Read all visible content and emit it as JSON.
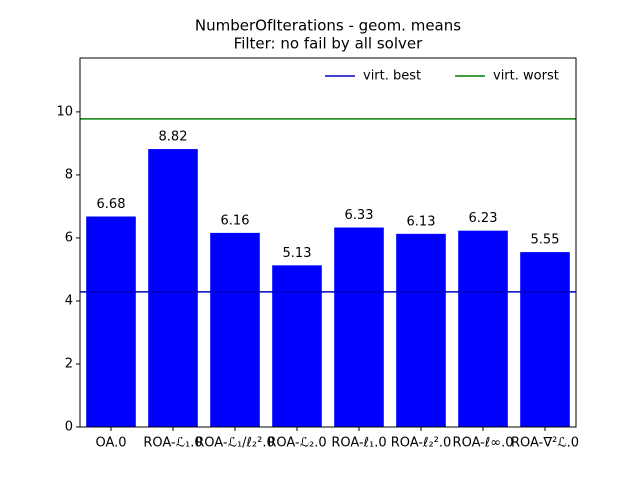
{
  "chart_data": {
    "type": "bar",
    "title": "NumberOfIterations - geom. means",
    "subtitle": "Filter: no fail by all solver",
    "categories": [
      "OA.0",
      "ROA-ℒ₁.0",
      "ROA-ℒ₁/ℓ₂².0",
      "ROA-ℒ₂.0",
      "ROA-ℓ₁.0",
      "ROA-ℓ₂².0",
      "ROA-ℓ∞.0",
      "ROA-∇²ℒ.0"
    ],
    "values": [
      6.68,
      8.82,
      6.16,
      5.13,
      6.33,
      6.13,
      6.23,
      5.55
    ],
    "color": "#0000ff",
    "reference_lines": [
      {
        "name": "virt. best",
        "color": "#0000bf",
        "value": 4.29
      },
      {
        "name": "virt. worst",
        "color": "#008000",
        "value": 9.78
      }
    ],
    "ylim": [
      0,
      11.71
    ],
    "yticks": [
      0,
      2,
      4,
      6,
      8,
      10
    ],
    "legend": "upper right"
  }
}
